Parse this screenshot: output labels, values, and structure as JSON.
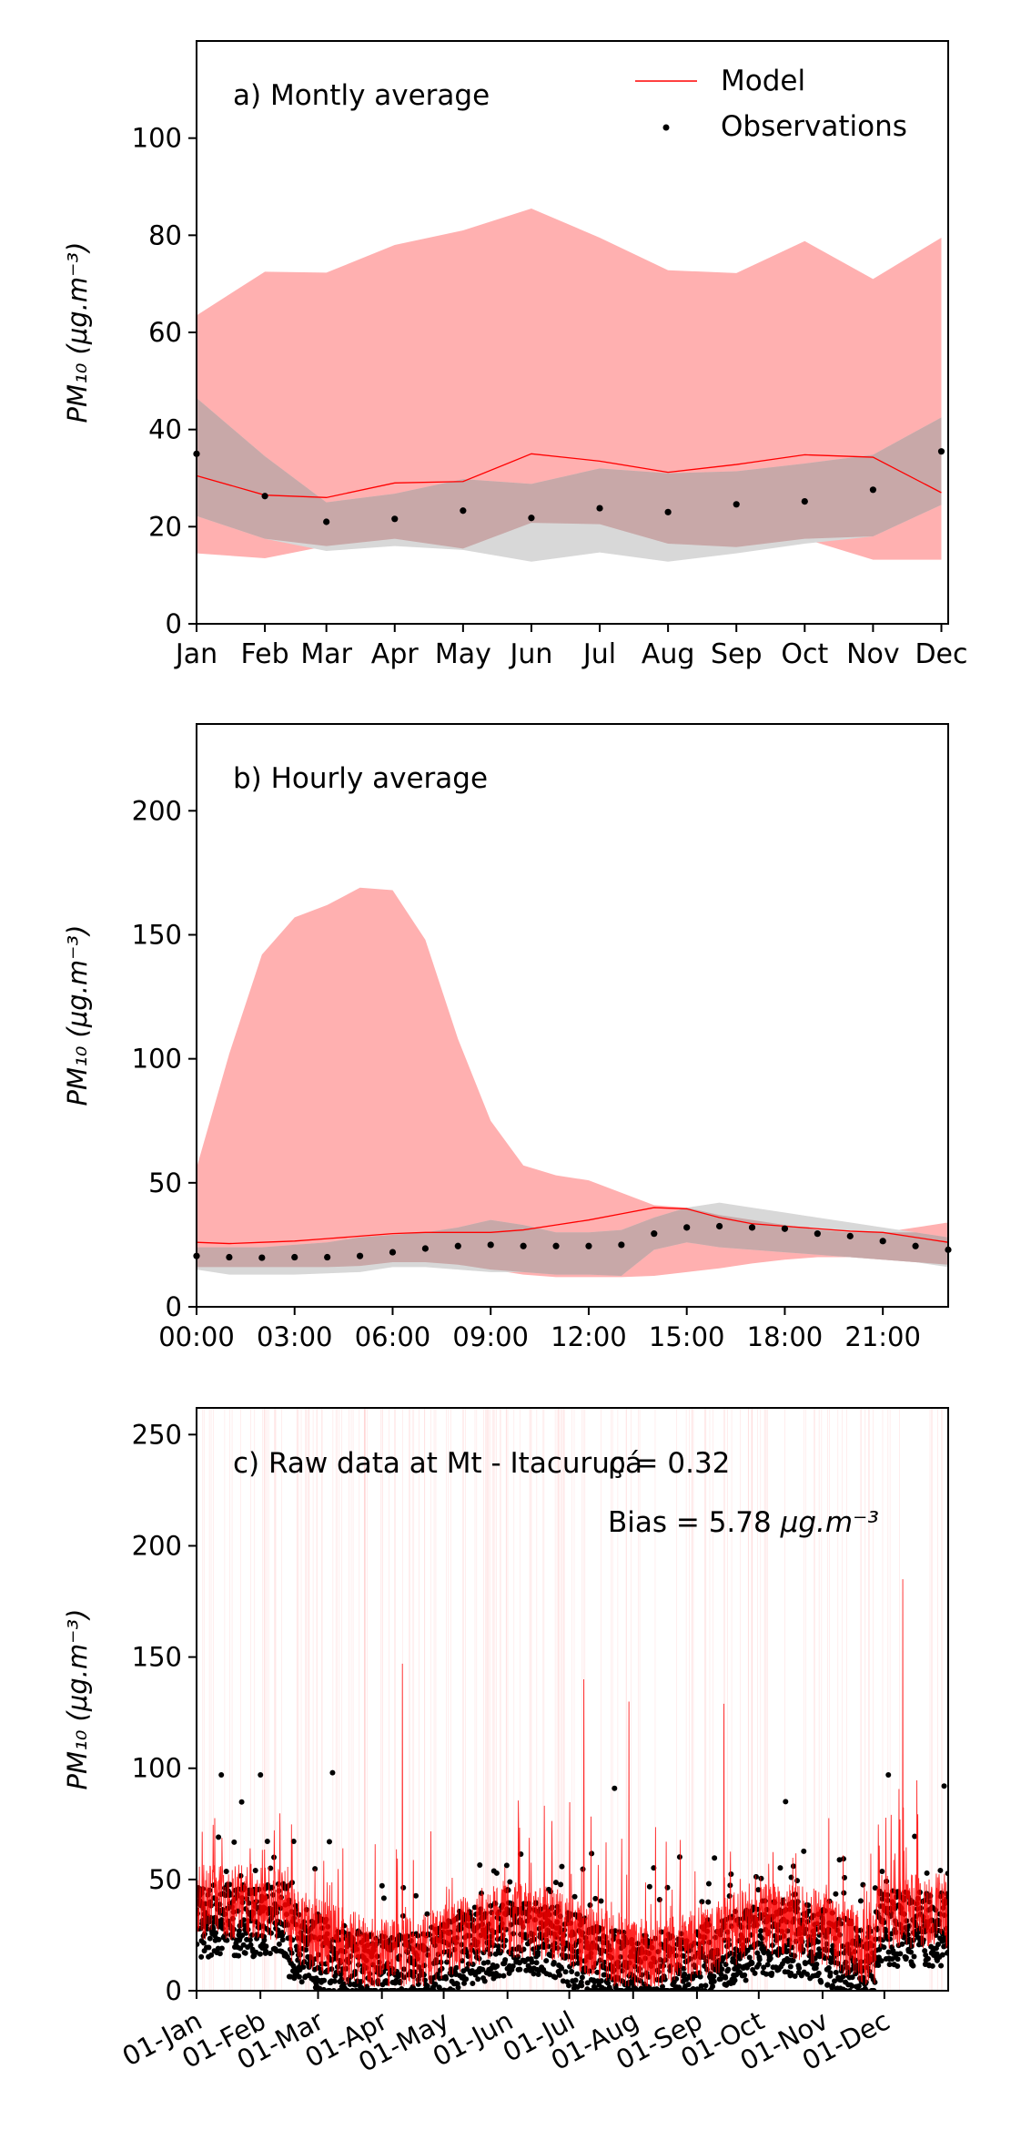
{
  "colors": {
    "model": "#ff0000",
    "model_band": "#ffb0b0",
    "obs_band": "#d8d8d8",
    "overlap_band": "#c8a8a8",
    "observations": "#000000"
  },
  "legend": {
    "model": "Model",
    "observations": "Observations",
    "placement": "top-right"
  },
  "chart_data": [
    {
      "type": "line",
      "panel_label": "a) Montly average",
      "ylabel": "PM₁₀ (μg.m⁻³)",
      "ylim": [
        0,
        120
      ],
      "yticks": [
        0,
        20,
        40,
        60,
        80,
        100
      ],
      "categories": [
        "Jan",
        "Feb",
        "Mar",
        "Apr",
        "May",
        "Jun",
        "Jul",
        "Aug",
        "Sep",
        "Oct",
        "Nov",
        "Dec"
      ],
      "x": [
        0,
        1,
        1.9,
        2.9,
        3.9,
        4.9,
        5.9,
        6.9,
        7.9,
        8.9,
        9.9,
        10.9
      ],
      "series": [
        {
          "name": "Model",
          "kind": "line",
          "values": [
            30.5,
            26.5,
            26,
            29,
            29.3,
            35,
            33.5,
            31.2,
            32.8,
            34.8,
            34.3,
            27
          ]
        },
        {
          "name": "Observations",
          "kind": "points",
          "values": [
            35,
            26.3,
            21,
            21.6,
            23.3,
            21.8,
            23.8,
            23,
            24.6,
            25.2,
            27.6,
            35.5
          ]
        }
      ],
      "bands": [
        {
          "kind": "model",
          "upper": [
            63.5,
            72.5,
            72.3,
            78,
            81,
            85.5,
            79.5,
            72.8,
            72.2,
            78.8,
            71,
            79.5
          ],
          "lower": [
            14.5,
            13.5,
            16,
            17.5,
            15.5,
            20.8,
            20.5,
            16.5,
            15.8,
            17.5,
            13.2,
            13.2
          ]
        },
        {
          "kind": "observations",
          "upper": [
            46.5,
            34.5,
            25,
            26.8,
            29.8,
            28.8,
            32,
            31,
            31.4,
            33,
            34.8,
            42.5
          ],
          "lower": [
            22.2,
            17.5,
            15,
            16,
            15.2,
            12.8,
            14.7,
            12.8,
            14.5,
            16.5,
            18,
            24.5
          ]
        }
      ],
      "grid": false
    },
    {
      "type": "line",
      "panel_label": "b) Hourly average",
      "ylabel": "PM₁₀ (μg.m⁻³)",
      "ylim": [
        0,
        235
      ],
      "yticks": [
        0,
        50,
        100,
        150,
        200
      ],
      "xlim": [
        0,
        23
      ],
      "xticks": [
        0,
        3,
        6,
        9,
        12,
        15,
        18,
        21
      ],
      "xticklabels": [
        "00:00",
        "03:00",
        "06:00",
        "09:00",
        "12:00",
        "15:00",
        "18:00",
        "21:00"
      ],
      "x": [
        0,
        1,
        2,
        3,
        4,
        5,
        6,
        7,
        8,
        9,
        10,
        11,
        12,
        13,
        14,
        15,
        16,
        17,
        18,
        19,
        20,
        21,
        22,
        23
      ],
      "series": [
        {
          "name": "Model",
          "kind": "line",
          "values": [
            26,
            25.5,
            26,
            26.5,
            27.5,
            28.5,
            29.5,
            30,
            30,
            30,
            31,
            33,
            35,
            37.5,
            40,
            39.5,
            36,
            33.5,
            32.5,
            31.5,
            30.5,
            30,
            28,
            26
          ]
        },
        {
          "name": "Observations",
          "kind": "points",
          "values": [
            20.5,
            20,
            19.8,
            20,
            20,
            20.5,
            22,
            23.5,
            24.5,
            25,
            24.5,
            24.5,
            24.5,
            25,
            29.5,
            32,
            32.5,
            32,
            31.5,
            29.5,
            28.5,
            26.5,
            24.5,
            23
          ]
        }
      ],
      "bands": [
        {
          "kind": "model",
          "upper": [
            56,
            102,
            142,
            157,
            162,
            169,
            168,
            148,
            108,
            75,
            57,
            53,
            51,
            46,
            41,
            40,
            37,
            35,
            33,
            31,
            30,
            30,
            32,
            34
          ],
          "lower": [
            16,
            16,
            16,
            16,
            16,
            16.5,
            18,
            18,
            17,
            15,
            13,
            12,
            12,
            12,
            12.5,
            14,
            15.5,
            17.5,
            19,
            20,
            20,
            19,
            18,
            17
          ]
        },
        {
          "kind": "observations",
          "upper": [
            24,
            24,
            24,
            25,
            26,
            28,
            29,
            30,
            32,
            35,
            33,
            30,
            30,
            31,
            36,
            40,
            42,
            40,
            38,
            36,
            34,
            32,
            30,
            28
          ],
          "lower": [
            15,
            13,
            13,
            13,
            13.5,
            14,
            16,
            16,
            15,
            14,
            14,
            13,
            13,
            12.5,
            23,
            26,
            24,
            23,
            22,
            21,
            20,
            19,
            18,
            16
          ]
        }
      ],
      "grid": false
    },
    {
      "type": "line",
      "panel_label": "c) Raw data at Mt - Itacuruçá",
      "stat_r": "ρ = 0.32",
      "stat_bias_prefix": "Bias = 5.78 ",
      "stat_bias_unit": "μg.m⁻³",
      "ylabel": "PM₁₀ (μg.m⁻³)",
      "ylim": [
        0,
        262
      ],
      "yticks": [
        0,
        50,
        100,
        150,
        200,
        250
      ],
      "xlim_days": [
        0,
        365
      ],
      "xticks_days": [
        0,
        31,
        59,
        90,
        120,
        151,
        181,
        212,
        243,
        273,
        304,
        334
      ],
      "xticklabels": [
        "01-Jan",
        "01-Feb",
        "01-Mar",
        "01-Apr",
        "01-May",
        "01-Jun",
        "01-Jul",
        "01-Aug",
        "01-Sep",
        "01-Oct",
        "01-Nov",
        "01-Dec"
      ],
      "series": [
        {
          "name": "Model",
          "kind": "hourly line",
          "typical_range": [
            5,
            80
          ],
          "notable_peaks": [
            [
              100,
              147
            ],
            [
              188,
              140
            ],
            [
              210,
              130
            ],
            [
              256,
              129
            ],
            [
              343,
              185
            ]
          ]
        },
        {
          "name": "Observations",
          "kind": "hourly points",
          "typical_range": [
            0,
            75
          ],
          "notable_peaks": [
            [
              12,
              97
            ],
            [
              31,
              97
            ],
            [
              66,
              98
            ],
            [
              203,
              91
            ],
            [
              286,
              85
            ],
            [
              336,
              97
            ],
            [
              363,
              92
            ]
          ]
        }
      ],
      "grid": false
    }
  ]
}
